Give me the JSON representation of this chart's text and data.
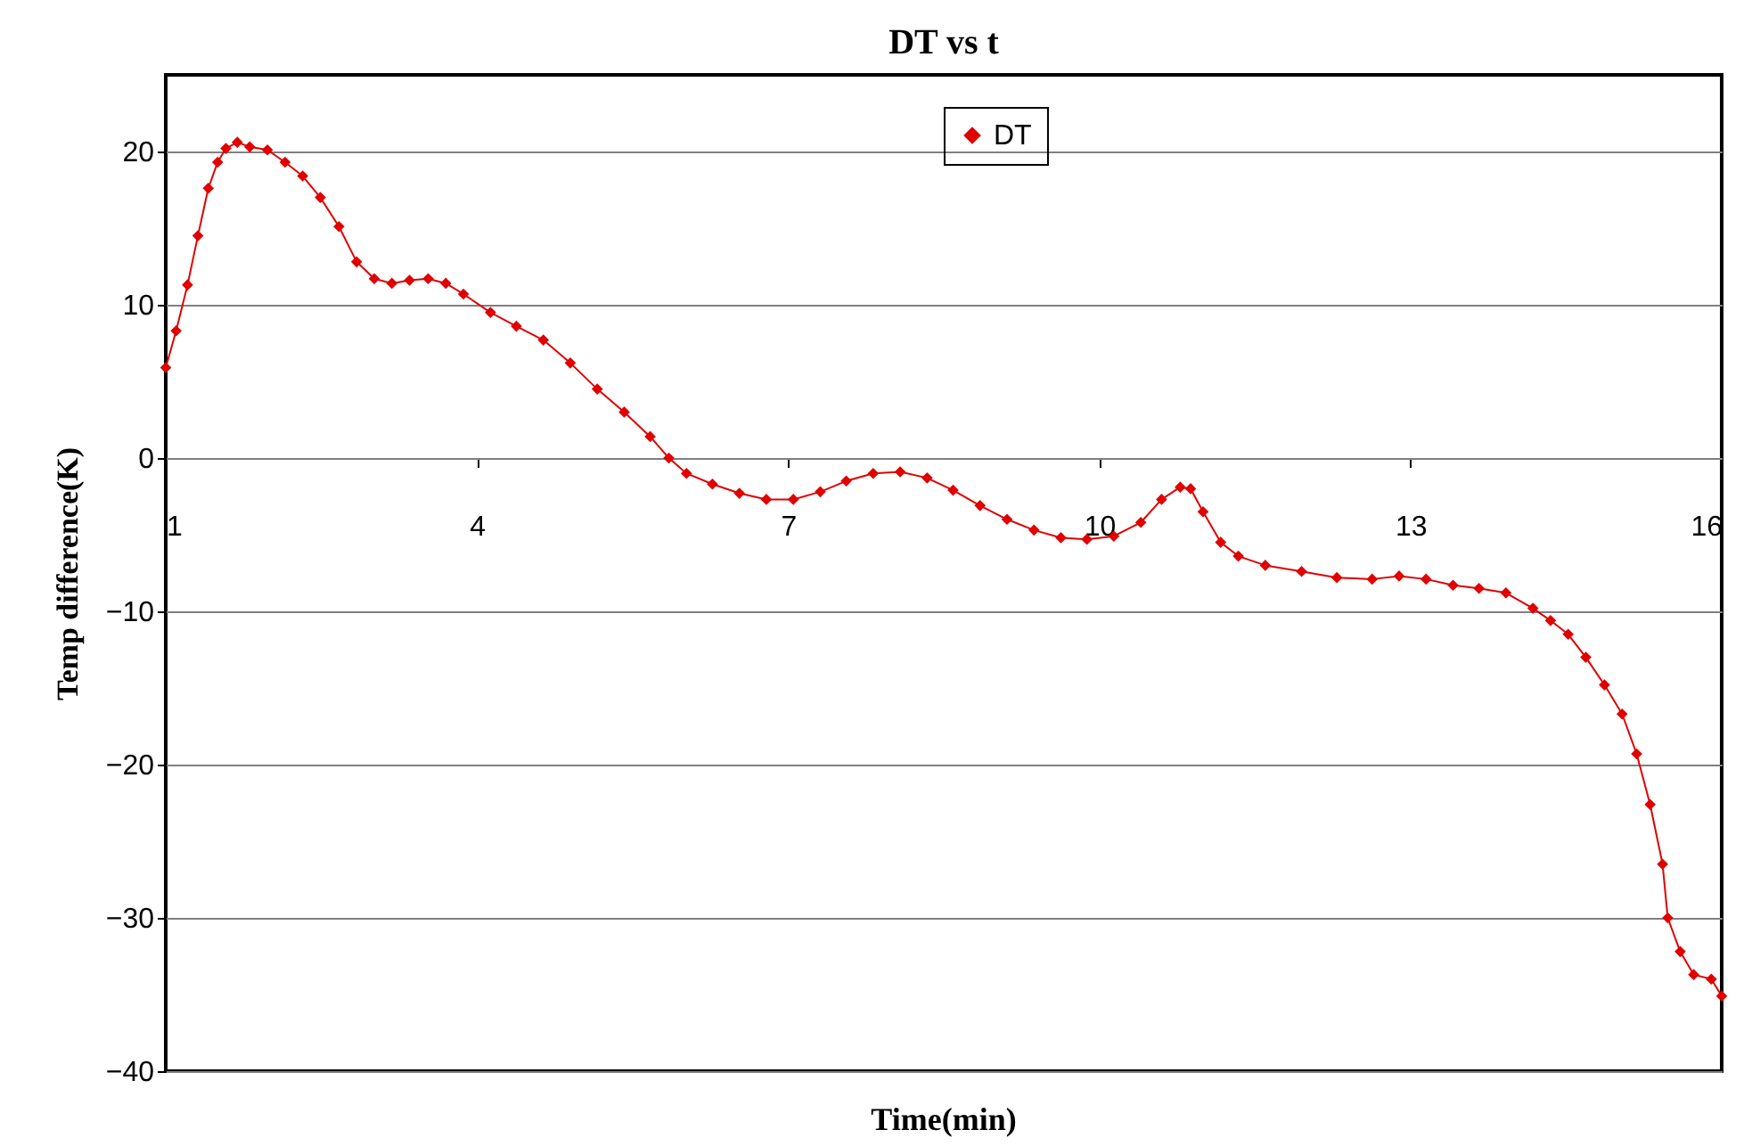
{
  "chart_data": {
    "type": "line",
    "title": "DT  vs t",
    "xlabel": "Time(min)",
    "ylabel": "Temp difference(K)",
    "x": [
      1.0,
      1.1,
      1.21,
      1.31,
      1.41,
      1.5,
      1.58,
      1.69,
      1.81,
      1.98,
      2.15,
      2.32,
      2.49,
      2.67,
      2.84,
      3.01,
      3.18,
      3.35,
      3.53,
      3.7,
      3.87,
      4.13,
      4.38,
      4.64,
      4.9,
      5.16,
      5.42,
      5.67,
      5.85,
      6.02,
      6.27,
      6.53,
      6.79,
      7.05,
      7.31,
      7.56,
      7.82,
      8.08,
      8.34,
      8.59,
      8.85,
      9.11,
      9.37,
      9.63,
      9.88,
      10.14,
      10.4,
      10.6,
      10.78,
      10.88,
      11.0,
      11.17,
      11.34,
      11.6,
      11.95,
      12.29,
      12.63,
      12.89,
      13.15,
      13.41,
      13.66,
      13.92,
      14.18,
      14.35,
      14.52,
      14.69,
      14.87,
      15.04,
      15.18,
      15.31,
      15.43,
      15.48,
      15.6,
      15.73,
      15.9,
      16.0
    ],
    "series": [
      {
        "name": "DT",
        "color": "#e00000",
        "values": [
          5.9,
          8.3,
          11.3,
          14.5,
          17.6,
          19.3,
          20.2,
          20.6,
          20.3,
          20.1,
          19.3,
          18.4,
          17.0,
          15.1,
          12.8,
          11.7,
          11.4,
          11.6,
          11.7,
          11.4,
          10.7,
          9.5,
          8.6,
          7.7,
          6.2,
          4.5,
          3.0,
          1.4,
          0.0,
          -1.0,
          -1.7,
          -2.3,
          -2.7,
          -2.7,
          -2.2,
          -1.5,
          -1.0,
          -0.9,
          -1.3,
          -2.1,
          -3.1,
          -4.0,
          -4.7,
          -5.2,
          -5.3,
          -5.1,
          -4.2,
          -2.7,
          -1.9,
          -2.0,
          -3.5,
          -5.5,
          -6.4,
          -7.0,
          -7.4,
          -7.8,
          -7.9,
          -7.7,
          -7.9,
          -8.3,
          -8.5,
          -8.8,
          -9.8,
          -10.6,
          -11.5,
          -13.0,
          -14.8,
          -16.7,
          -19.3,
          -22.6,
          -26.5,
          -30.0,
          -32.2,
          -33.7,
          -34.0,
          -35.1
        ]
      }
    ],
    "xlim": [
      1,
      16
    ],
    "xticks": [
      1,
      4,
      7,
      10,
      13,
      16
    ],
    "ylim": [
      -40,
      25
    ],
    "yticks": [
      -40,
      -30,
      -20,
      -10,
      0,
      10,
      20
    ],
    "grid": "y",
    "legend": "top",
    "marker": "diamond",
    "line_style": "solid"
  }
}
